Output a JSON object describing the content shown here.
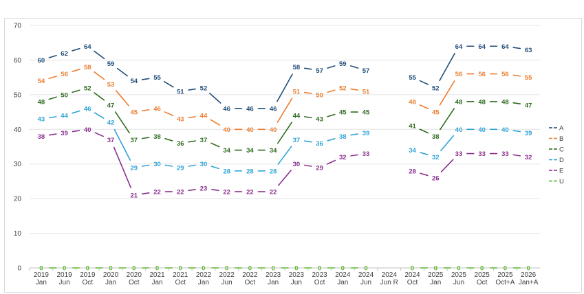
{
  "chart_data": {
    "type": "line",
    "title": "",
    "xlabel": "",
    "ylabel": "",
    "ylim": [
      0,
      70
    ],
    "yticks": [
      0,
      10,
      20,
      30,
      40,
      50,
      60,
      70
    ],
    "grid": true,
    "legend_position": "right",
    "categories": [
      [
        "2019",
        "Jan"
      ],
      [
        "2019",
        "Jun"
      ],
      [
        "2019",
        "Oct"
      ],
      [
        "2020",
        "Jan"
      ],
      [
        "2020",
        "Oct"
      ],
      [
        "2021",
        "Jan"
      ],
      [
        "2021",
        "Oct"
      ],
      [
        "2022",
        "Jan"
      ],
      [
        "2022",
        "Jun"
      ],
      [
        "2022",
        "Oct"
      ],
      [
        "2023",
        "Jan"
      ],
      [
        "2023",
        "Jun"
      ],
      [
        "2023",
        "Oct"
      ],
      [
        "2024",
        "Jan"
      ],
      [
        "2024",
        "Jun"
      ],
      [
        "2024",
        "Jun R"
      ],
      [
        "2024",
        "Oct"
      ],
      [
        "2025",
        "Jan"
      ],
      [
        "2025",
        "Jun"
      ],
      [
        "2025",
        "Oct"
      ],
      [
        "2025",
        "Oct+A"
      ],
      [
        "2026",
        "Jan+A"
      ]
    ],
    "series": [
      {
        "name": "A",
        "color": "#1f4e79",
        "values": [
          60,
          62,
          64,
          59,
          54,
          55,
          51,
          52,
          46,
          46,
          46,
          58,
          57,
          59,
          57,
          null,
          55,
          52,
          64,
          64,
          64,
          63
        ]
      },
      {
        "name": "B",
        "color": "#ed7d31",
        "values": [
          54,
          56,
          58,
          53,
          45,
          46,
          43,
          44,
          40,
          40,
          40,
          51,
          50,
          52,
          51,
          null,
          48,
          45,
          56,
          56,
          56,
          55
        ]
      },
      {
        "name": "C",
        "color": "#2e6b1e",
        "values": [
          48,
          50,
          52,
          47,
          37,
          38,
          36,
          37,
          34,
          34,
          34,
          44,
          43,
          45,
          45,
          null,
          41,
          38,
          48,
          48,
          48,
          47
        ]
      },
      {
        "name": "D",
        "color": "#2ea3d6",
        "values": [
          43,
          44,
          46,
          42,
          29,
          30,
          29,
          30,
          28,
          28,
          28,
          37,
          36,
          38,
          39,
          null,
          34,
          32,
          40,
          40,
          40,
          39
        ]
      },
      {
        "name": "E",
        "color": "#8b2f8f",
        "values": [
          38,
          39,
          40,
          37,
          21,
          22,
          22,
          23,
          22,
          22,
          22,
          30,
          29,
          32,
          33,
          null,
          28,
          26,
          33,
          33,
          33,
          32
        ]
      },
      {
        "name": "U",
        "color": "#5cb82e",
        "values": [
          0,
          0,
          0,
          0,
          0,
          0,
          0,
          0,
          0,
          0,
          0,
          0,
          0,
          0,
          0,
          null,
          0,
          0,
          0,
          0,
          0,
          0
        ]
      }
    ]
  }
}
